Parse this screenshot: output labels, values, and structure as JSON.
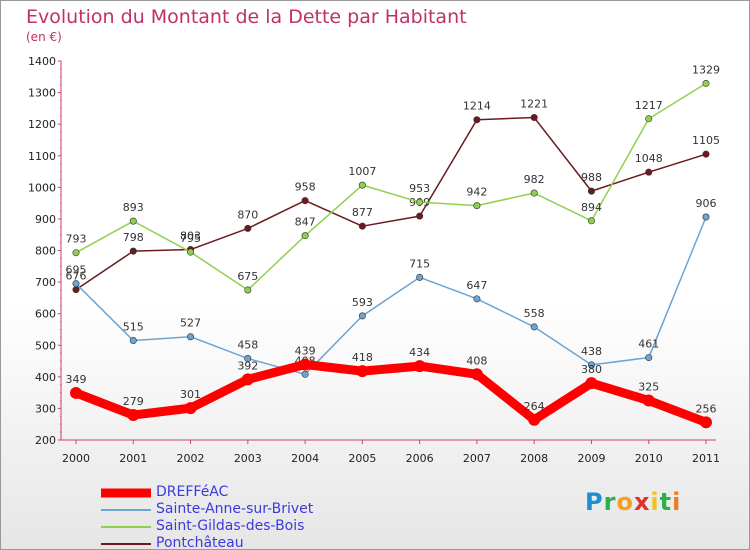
{
  "chart_data": {
    "type": "line",
    "title": "Evolution du Montant de la Dette par Habitant",
    "subtitle": "(en €)",
    "x": [
      "2000",
      "2001",
      "2002",
      "2003",
      "2004",
      "2005",
      "2006",
      "2007",
      "2008",
      "2009",
      "2010",
      "2011"
    ],
    "ylim": [
      200,
      1400
    ],
    "yticks": [
      200,
      300,
      400,
      500,
      600,
      700,
      800,
      900,
      1000,
      1100,
      1200,
      1300,
      1400
    ],
    "grid": false,
    "legend_position": "bottom-left",
    "series": [
      {
        "name": "Pontchâteau",
        "color": "#6b1a1f",
        "values": [
          676,
          798,
          803,
          870,
          958,
          877,
          909,
          1214,
          1221,
          988,
          1048,
          1105
        ]
      },
      {
        "name": "Saint-Gildas-des-Bois",
        "color": "#8fd14f",
        "values": [
          793,
          893,
          795,
          675,
          847,
          1007,
          953,
          942,
          982,
          894,
          1217,
          1329
        ]
      },
      {
        "name": "Sainte-Anne-sur-Brivet",
        "color": "#6fa3d0",
        "values": [
          695,
          515,
          527,
          458,
          408,
          593,
          715,
          647,
          558,
          438,
          461,
          906
        ]
      },
      {
        "name": "DREFFéAC",
        "color": "#ff0000",
        "values": [
          349,
          279,
          301,
          392,
          439,
          418,
          434,
          408,
          264,
          380,
          325,
          256
        ]
      }
    ]
  },
  "legend": [
    {
      "label": "DREFFéAC",
      "color": "#ff0000",
      "thickness": 9
    },
    {
      "label": "Sainte-Anne-sur-Brivet",
      "color": "#6fa3d0",
      "thickness": 2
    },
    {
      "label": "Saint-Gildas-des-Bois",
      "color": "#8fd14f",
      "thickness": 2
    },
    {
      "label": "Pontchâteau",
      "color": "#6b1a1f",
      "thickness": 2
    }
  ],
  "brand": {
    "letters": [
      "P",
      "r",
      "o",
      "x",
      "i",
      "t",
      "i"
    ],
    "colors": [
      "#1b8fd6",
      "#2bb04a",
      "#f2a01e",
      "#e0312f",
      "#f2c21e",
      "#2bb04a",
      "#f27b1e"
    ]
  }
}
